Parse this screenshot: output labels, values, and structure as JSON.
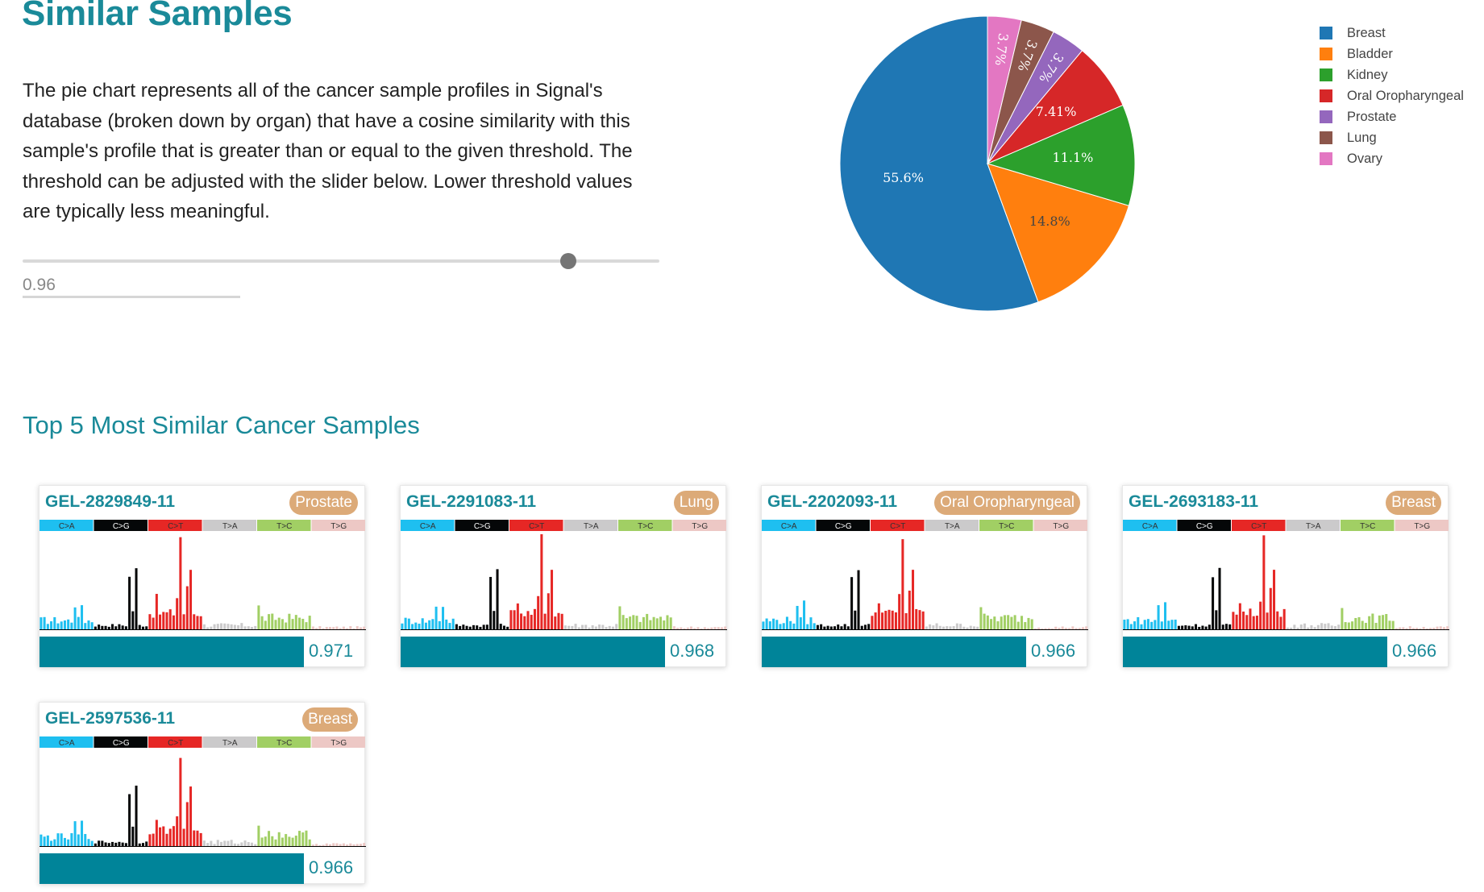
{
  "page": {
    "title": "Similar Samples",
    "description": "The pie chart represents all of the cancer sample profiles in Signal's database (broken down by organ) that have a cosine similarity with this sample's profile that is greater than or equal to the given threshold. The threshold can be adjusted with the slider below. Lower threshold values are typically less meaningful."
  },
  "slider": {
    "value": 0.96,
    "min": 0,
    "max": 1,
    "position_fraction": 0.857
  },
  "threshold_field": {
    "value": "0.96"
  },
  "chart_data": {
    "type": "pie",
    "categories": [
      "Breast",
      "Bladder",
      "Kidney",
      "Oral Oropharyngeal",
      "Prostate",
      "Lung",
      "Ovary"
    ],
    "values": [
      55.6,
      14.8,
      11.1,
      7.41,
      3.7,
      3.7,
      3.7
    ],
    "labels": [
      "55.6%",
      "14.8%",
      "11.1%",
      "7.41%",
      "3.7%",
      "3.7%",
      "3.7%"
    ],
    "colors": [
      "#1f77b4",
      "#ff7f0e",
      "#2ca02c",
      "#d62728",
      "#9467bd",
      "#8c564b",
      "#e377c2"
    ],
    "legend_position": "top-right"
  },
  "top_section": {
    "title": "Top 5 Most Similar Cancer Samples"
  },
  "signature_categories": [
    {
      "label": "C>A",
      "color": "#1ebff0",
      "text": "#333333"
    },
    {
      "label": "C>G",
      "color": "#050708",
      "text": "#ffffff"
    },
    {
      "label": "C>T",
      "color": "#e62725",
      "text": "#333333"
    },
    {
      "label": "T>A",
      "color": "#cbcacb",
      "text": "#333333"
    },
    {
      "label": "T>C",
      "color": "#a1cf64",
      "text": "#333333"
    },
    {
      "label": "T>G",
      "color": "#edc8c5",
      "text": "#333333"
    }
  ],
  "samples": [
    {
      "id": "GEL-2829849-11",
      "organ": "Prostate",
      "similarity": "0.971",
      "similarity_fraction": 0.81
    },
    {
      "id": "GEL-2291083-11",
      "organ": "Lung",
      "similarity": "0.968",
      "similarity_fraction": 0.81
    },
    {
      "id": "GEL-2202093-11",
      "organ": "Oral Oropharyngeal",
      "similarity": "0.966",
      "similarity_fraction": 0.81
    },
    {
      "id": "GEL-2693183-11",
      "organ": "Breast",
      "similarity": "0.966",
      "similarity_fraction": 0.81
    },
    {
      "id": "GEL-2597536-11",
      "organ": "Breast",
      "similarity": "0.966",
      "similarity_fraction": 0.81
    }
  ]
}
